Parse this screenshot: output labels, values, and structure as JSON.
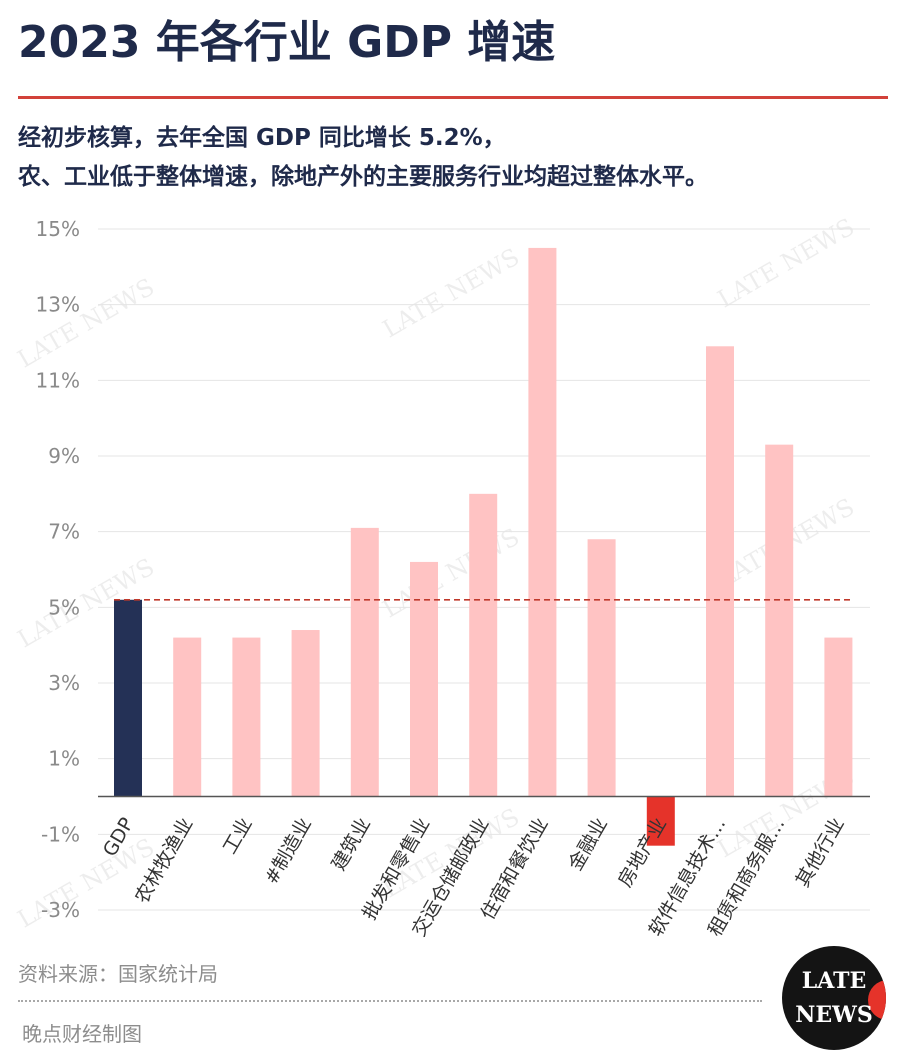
{
  "header": {
    "title": "2023 年各行业 GDP 增速",
    "subtitle_line1": "经初步核算，去年全国 GDP 同比增长 5.2%，",
    "subtitle_line2": "农、工业低于整体增速，除地产外的主要服务行业均超过整体水平。"
  },
  "chart_data": {
    "type": "bar",
    "categories": [
      "GDP",
      "农林牧渔业",
      "工业",
      "#制造业",
      "建筑业",
      "批发和零售业",
      "交运仓储邮政业",
      "住宿和餐饮业",
      "金融业",
      "房地产业",
      "软件信息技术…",
      "租赁和商务服…",
      "其他行业"
    ],
    "values": [
      5.2,
      4.2,
      4.2,
      4.4,
      7.1,
      6.2,
      8.0,
      14.5,
      6.8,
      -1.3,
      11.9,
      9.3,
      4.2
    ],
    "ylim": [
      -3,
      15
    ],
    "yticks": [
      15,
      13,
      11,
      9,
      7,
      5,
      3,
      1,
      -1,
      -3
    ],
    "ytick_labels": [
      "15%",
      "13%",
      "11%",
      "9%",
      "7%",
      "5%",
      "3%",
      "1%",
      "-1%",
      "-3%"
    ],
    "reference_line": 5.2,
    "grid": true,
    "colors": {
      "gdp": "#243156",
      "above": "#ffc3c3",
      "below": "#e5332a",
      "reference": "#c0392b",
      "grid": "#e4e4e4",
      "axis": "#555555",
      "tick_text": "#8a8a8a"
    },
    "watermark": "LATE NEWS"
  },
  "footer": {
    "source": "资料来源：国家统计局",
    "credit": "晚点财经制图"
  },
  "logo": {
    "line1": "LATE",
    "line2": "NEWS"
  }
}
